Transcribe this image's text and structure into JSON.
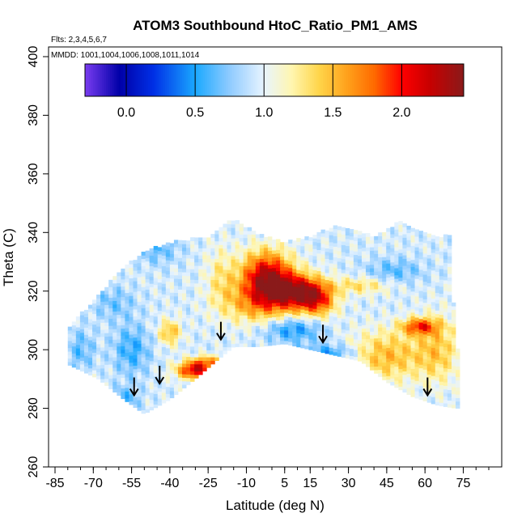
{
  "chart_data": {
    "type": "heatmap",
    "title": "ATOM3 Southbound HtoC_Ratio_PM1_AMS",
    "notes": {
      "flights": "Flts: 2,3,4,5,6,7",
      "mmdd": "MMDD: 1001,1004,1006,1008,1011,1014"
    },
    "xlabel": "Latitude (deg N)",
    "ylabel": "Theta (C)",
    "xlim": [
      -85,
      85
    ],
    "ylim": [
      260,
      400
    ],
    "x_ticks": [
      -85,
      -70,
      -55,
      -40,
      -25,
      -10,
      5,
      15,
      30,
      45,
      60,
      75
    ],
    "x_tick_labels": [
      "-85",
      "-70",
      "-55",
      "-40",
      "-25",
      "-10",
      "5",
      "15",
      "30",
      "45",
      "60",
      "75"
    ],
    "y_ticks": [
      260,
      280,
      300,
      320,
      340,
      360,
      380,
      400
    ],
    "y_tick_labels": [
      "260",
      "280",
      "300",
      "320",
      "340",
      "360",
      "380",
      "400"
    ],
    "colorbar": {
      "min": -0.3,
      "max": 2.45,
      "ticks": [
        0.0,
        0.5,
        1.0,
        1.5,
        2.0
      ],
      "tick_labels": [
        "0.0",
        "0.5",
        "1.0",
        "1.5",
        "2.0"
      ],
      "stops": [
        [
          -0.3,
          "#7a3cf0"
        ],
        [
          -0.05,
          "#0000a8"
        ],
        [
          0.2,
          "#0030e6"
        ],
        [
          0.5,
          "#1aa8ff"
        ],
        [
          0.75,
          "#8fcbff"
        ],
        [
          1.0,
          "#e8f4ff"
        ],
        [
          1.2,
          "#fff6b0"
        ],
        [
          1.4,
          "#ffd54a"
        ],
        [
          1.6,
          "#ffa21c"
        ],
        [
          1.8,
          "#ff6a00"
        ],
        [
          2.0,
          "#ff0000"
        ],
        [
          2.2,
          "#c80000"
        ],
        [
          2.45,
          "#8a1a1a"
        ]
      ]
    },
    "field": {
      "boundary_top": [
        [
          -80,
          307
        ],
        [
          -70,
          316
        ],
        [
          -60,
          326
        ],
        [
          -50,
          333
        ],
        [
          -40,
          336
        ],
        [
          -25,
          338
        ],
        [
          -15,
          344
        ],
        [
          -5,
          339
        ],
        [
          5,
          336
        ],
        [
          15,
          338
        ],
        [
          25,
          342
        ],
        [
          40,
          338
        ],
        [
          50,
          343
        ],
        [
          60,
          339
        ],
        [
          70,
          338
        ],
        [
          72,
          300
        ]
      ],
      "boundary_bottom": [
        [
          -80,
          295
        ],
        [
          -68,
          290
        ],
        [
          -58,
          283
        ],
        [
          -50,
          278
        ],
        [
          -40,
          283
        ],
        [
          -30,
          290
        ],
        [
          -22,
          296
        ],
        [
          -15,
          301
        ],
        [
          -5,
          301
        ],
        [
          5,
          302
        ],
        [
          15,
          300
        ],
        [
          25,
          298
        ],
        [
          35,
          296
        ],
        [
          45,
          289
        ],
        [
          55,
          284
        ],
        [
          65,
          281
        ],
        [
          72,
          280
        ]
      ],
      "base_value": 0.95,
      "features": [
        {
          "x": -2,
          "y": 325,
          "sx": 7,
          "sy": 6,
          "amp": 1.3
        },
        {
          "x": 10,
          "y": 320,
          "sx": 7,
          "sy": 4,
          "amp": 1.15
        },
        {
          "x": 18,
          "y": 317,
          "sx": 5,
          "sy": 4,
          "amp": 0.8
        },
        {
          "x": -5,
          "y": 316,
          "sx": 10,
          "sy": 5,
          "amp": 0.6
        },
        {
          "x": 8,
          "y": 307,
          "sx": 8,
          "sy": 3,
          "amp": -0.5
        },
        {
          "x": 22,
          "y": 299,
          "sx": 8,
          "sy": 2,
          "amp": -0.45
        },
        {
          "x": -30,
          "y": 293,
          "sx": 5,
          "sy": 2,
          "amp": 1.2
        },
        {
          "x": -25,
          "y": 296,
          "sx": 5,
          "sy": 1.5,
          "amp": 0.6
        },
        {
          "x": -40,
          "y": 306,
          "sx": 3,
          "sy": 3,
          "amp": 0.55
        },
        {
          "x": -55,
          "y": 300,
          "sx": 5,
          "sy": 6,
          "amp": -0.4
        },
        {
          "x": -58,
          "y": 283,
          "sx": 4,
          "sy": 3,
          "amp": -0.35
        },
        {
          "x": -75,
          "y": 300,
          "sx": 4,
          "sy": 5,
          "amp": -0.3
        },
        {
          "x": 45,
          "y": 298,
          "sx": 10,
          "sy": 6,
          "amp": 0.55
        },
        {
          "x": 58,
          "y": 308,
          "sx": 5,
          "sy": 2,
          "amp": 0.9
        },
        {
          "x": 65,
          "y": 300,
          "sx": 6,
          "sy": 8,
          "amp": 0.45
        },
        {
          "x": 35,
          "y": 322,
          "sx": 8,
          "sy": 2,
          "amp": 0.4
        },
        {
          "x": 48,
          "y": 327,
          "sx": 8,
          "sy": 3,
          "amp": -0.3
        },
        {
          "x": -20,
          "y": 325,
          "sx": 4,
          "sy": 7,
          "amp": 0.3
        },
        {
          "x": -45,
          "y": 335,
          "sx": 6,
          "sy": 4,
          "amp": -0.3
        },
        {
          "x": -62,
          "y": 316,
          "sx": 6,
          "sy": 4,
          "amp": -0.25
        }
      ]
    },
    "arrows": [
      {
        "lat": -54,
        "theta": 285
      },
      {
        "lat": -44,
        "theta": 289
      },
      {
        "lat": -20,
        "theta": 304
      },
      {
        "lat": 20,
        "theta": 303
      },
      {
        "lat": 61,
        "theta": 285
      }
    ]
  }
}
